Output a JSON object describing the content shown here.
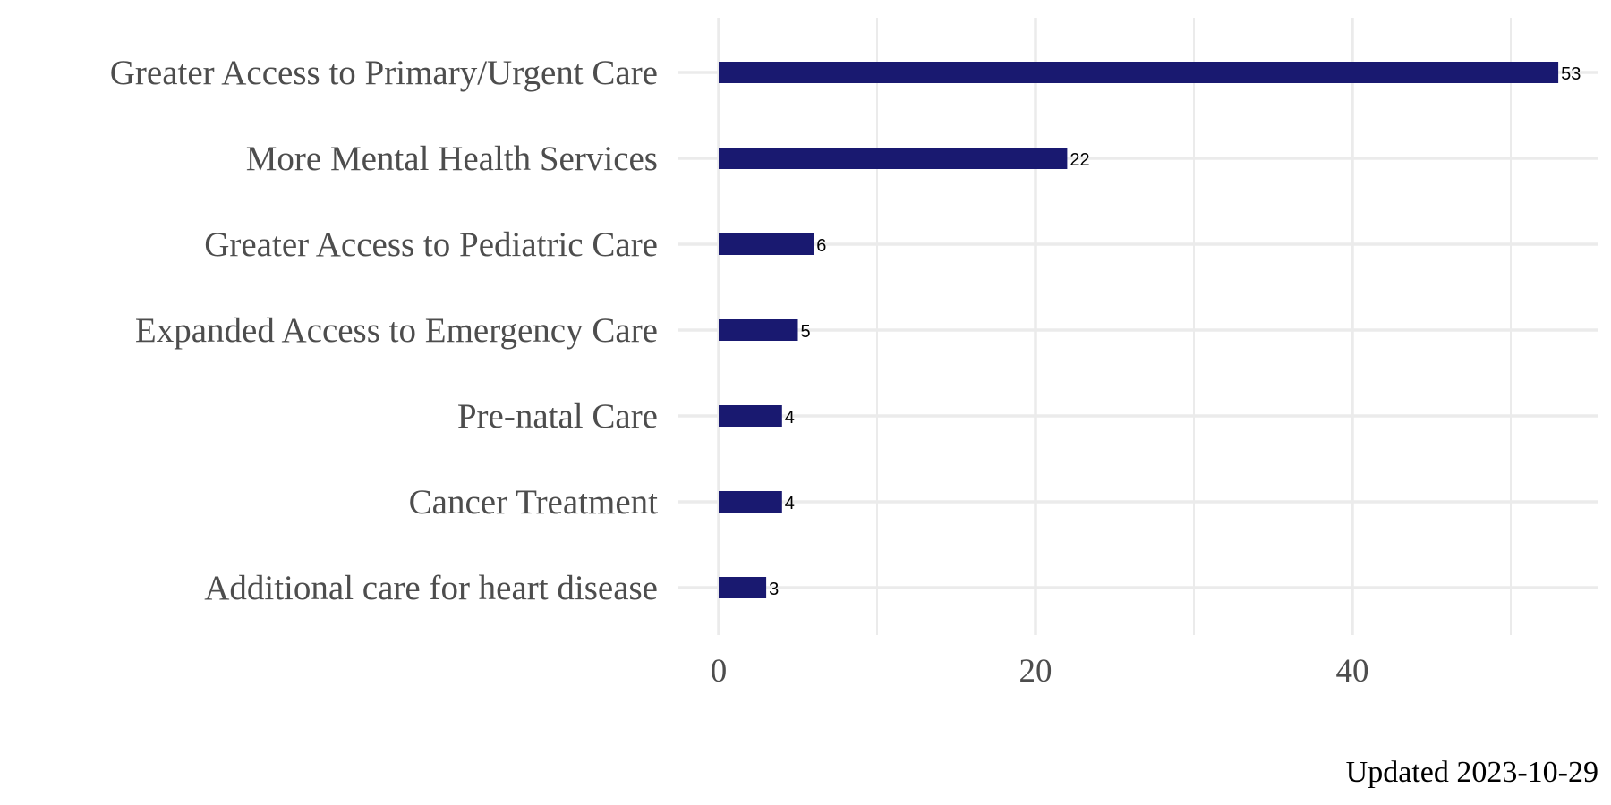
{
  "chart_data": {
    "type": "bar",
    "orientation": "horizontal",
    "categories": [
      "Greater Access to Primary/Urgent Care",
      "More Mental Health Services",
      "Greater Access to Pediatric Care",
      "Expanded Access to Emergency Care",
      "Pre-natal Care",
      "Cancer Treatment",
      "Additional care for heart disease"
    ],
    "values": [
      53,
      22,
      6,
      5,
      4,
      4,
      3
    ],
    "data_labels": [
      "53",
      "22",
      "6",
      "5",
      "4",
      "4",
      "3"
    ],
    "xlim": [
      0,
      55
    ],
    "x_ticks": [
      0,
      20,
      40
    ],
    "x_tick_labels": [
      "0",
      "20",
      "40"
    ],
    "minor_gridlines": [
      10,
      30,
      50
    ],
    "grid": true,
    "legend": "none",
    "bar_color": "#191970",
    "grid_color": "#ebebeb",
    "caption": "Updated 2023-10-29"
  }
}
